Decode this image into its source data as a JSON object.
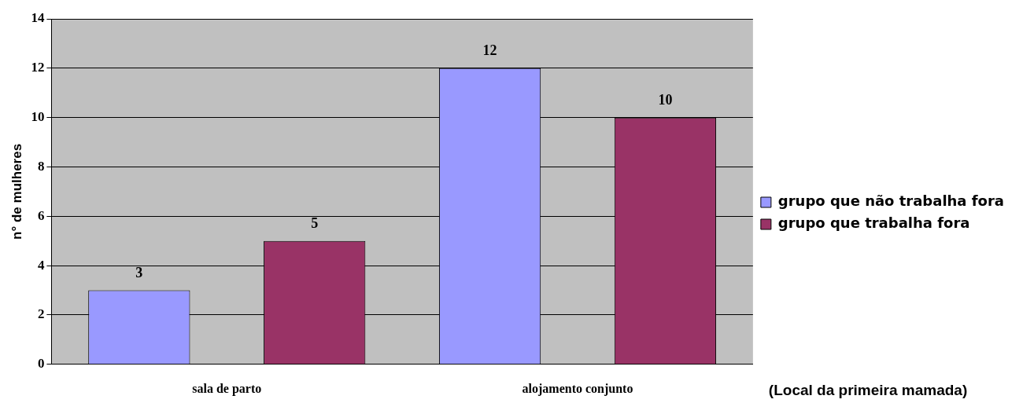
{
  "chart_data": {
    "type": "bar",
    "ylabel": "n° de mulheres",
    "xlabel": "(Local da primeira mamada)",
    "categories": [
      "sala de parto",
      "alojamento conjunto"
    ],
    "series": [
      {
        "name": "grupo que não trabalha fora",
        "color": "#9999ff",
        "values": [
          3,
          12
        ]
      },
      {
        "name": "grupo que trabalha fora",
        "color": "#993366",
        "values": [
          5,
          10
        ]
      }
    ],
    "ylim": [
      0,
      14
    ],
    "yticks": [
      0,
      2,
      4,
      6,
      8,
      10,
      12,
      14
    ],
    "grid": "y",
    "legend": "right",
    "data_labels": true
  }
}
